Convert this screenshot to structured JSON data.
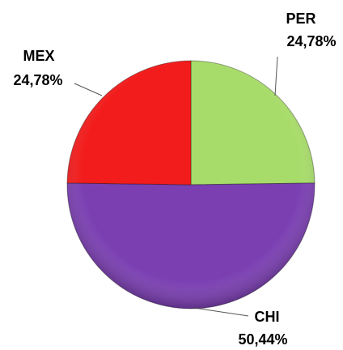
{
  "chart_data": {
    "type": "pie",
    "categories": [
      "PER",
      "CHI",
      "MEX"
    ],
    "values": [
      24.78,
      50.44,
      24.78
    ],
    "value_labels": [
      "24,78%",
      "50,44%",
      "24,78%"
    ],
    "colors": [
      "#a8dc6a",
      "#7b3fb2",
      "#f21c1c"
    ]
  }
}
